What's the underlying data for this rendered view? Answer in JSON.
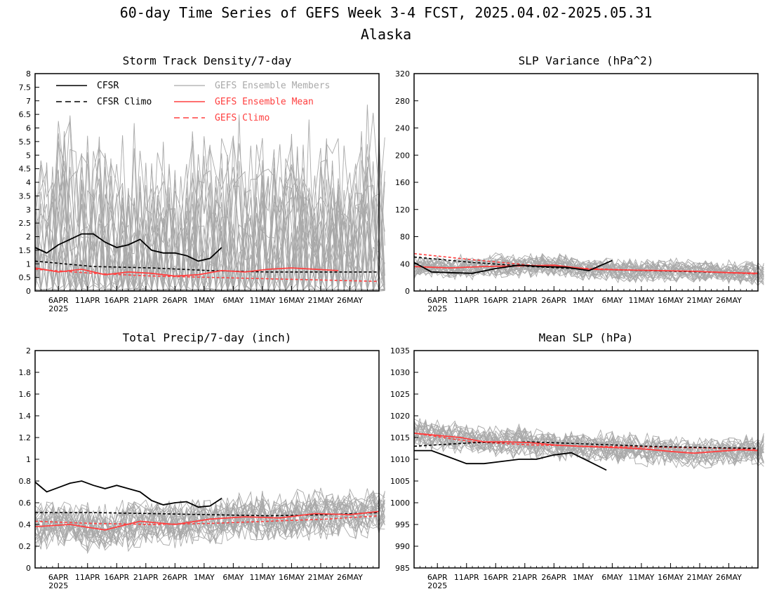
{
  "figure": {
    "title": "60-day Time Series of GEFS Week 3-4 FCST, 2025.04.02-2025.05.31",
    "subtitle": "Alaska"
  },
  "dates": {
    "tick_labels": [
      "6APR",
      "11APR",
      "16APR",
      "21APR",
      "26APR",
      "1MAY",
      "6MAY",
      "11MAY",
      "16MAY",
      "21MAY",
      "26MAY"
    ],
    "year_label": "2025"
  },
  "legend": {
    "cfsr": "CFSR",
    "cfsr_climo": "CFSR Climo",
    "members": "GEFS Ensemble Members",
    "mean": "GEFS Ensemble Mean",
    "gefs_climo": "GEFS Climo"
  },
  "colors": {
    "cfsr": "#000000",
    "members": "#a9a9a9",
    "mean": "#ff4040",
    "gefs_climo": "#ff4040"
  },
  "chart_data": [
    {
      "type": "line",
      "title": "Storm Track Density/7-day",
      "ylim": [
        0,
        8
      ],
      "y_ticks": [
        "0",
        "0.5",
        "1",
        "1.5",
        "2",
        "2.5",
        "3",
        "3.5",
        "4",
        "4.5",
        "5",
        "5.5",
        "6",
        "6.5",
        "7",
        "7.5",
        "8"
      ],
      "x_range": [
        "2025-04-02",
        "2025-05-31"
      ],
      "grid": false,
      "legend_position": "top-left",
      "series": [
        {
          "name": "CFSR",
          "style": "solid",
          "color": "#000000",
          "x": [
            "2025-04-02",
            "2025-04-04",
            "2025-04-06",
            "2025-04-08",
            "2025-04-10",
            "2025-04-12",
            "2025-04-14",
            "2025-04-16",
            "2025-04-18",
            "2025-04-20",
            "2025-04-22",
            "2025-04-24",
            "2025-04-26",
            "2025-04-28",
            "2025-04-30",
            "2025-05-02",
            "2025-05-04"
          ],
          "values": [
            1.6,
            1.4,
            1.7,
            1.9,
            2.1,
            2.1,
            1.8,
            1.6,
            1.7,
            1.9,
            1.5,
            1.4,
            1.4,
            1.3,
            1.1,
            1.2,
            1.6
          ]
        },
        {
          "name": "CFSR Climo",
          "style": "dashed",
          "color": "#000000",
          "x": [
            "2025-04-02",
            "2025-04-12",
            "2025-04-22",
            "2025-05-02",
            "2025-05-12",
            "2025-05-22",
            "2025-05-31"
          ],
          "values": [
            1.1,
            0.9,
            0.85,
            0.75,
            0.7,
            0.7,
            0.7
          ]
        },
        {
          "name": "GEFS Ensemble Mean",
          "style": "solid",
          "color": "#ff4040",
          "x": [
            "2025-04-02",
            "2025-04-06",
            "2025-04-10",
            "2025-04-14",
            "2025-04-18",
            "2025-04-22",
            "2025-04-26",
            "2025-04-30",
            "2025-05-04",
            "2025-05-08",
            "2025-05-12",
            "2025-05-16",
            "2025-05-20",
            "2025-05-24"
          ],
          "values": [
            0.85,
            0.7,
            0.8,
            0.6,
            0.7,
            0.65,
            0.55,
            0.6,
            0.75,
            0.7,
            0.8,
            0.85,
            0.8,
            0.75
          ]
        },
        {
          "name": "GEFS Climo",
          "style": "dashed",
          "color": "#ff4040",
          "x": [
            "2025-04-02",
            "2025-04-12",
            "2025-04-22",
            "2025-05-02",
            "2025-05-12",
            "2025-05-22",
            "2025-05-31"
          ],
          "values": [
            0.8,
            0.65,
            0.55,
            0.5,
            0.45,
            0.4,
            0.35
          ]
        }
      ]
    },
    {
      "type": "line",
      "title": "SLP Variance (hPa^2)",
      "ylim": [
        0,
        320
      ],
      "y_ticks": [
        "0",
        "40",
        "80",
        "120",
        "160",
        "200",
        "240",
        "280",
        "320"
      ],
      "x_range": [
        "2025-04-02",
        "2025-05-31"
      ],
      "grid": false,
      "series": [
        {
          "name": "CFSR",
          "style": "solid",
          "color": "#000000",
          "x": [
            "2025-04-02",
            "2025-04-05",
            "2025-04-08",
            "2025-04-12",
            "2025-04-16",
            "2025-04-20",
            "2025-04-24",
            "2025-04-28",
            "2025-05-02",
            "2025-05-06"
          ],
          "values": [
            42,
            28,
            27,
            26,
            33,
            38,
            36,
            35,
            30,
            45
          ]
        },
        {
          "name": "CFSR Climo",
          "style": "dashed",
          "color": "#000000",
          "x": [
            "2025-04-02",
            "2025-04-12",
            "2025-04-22",
            "2025-05-02",
            "2025-05-12",
            "2025-05-22",
            "2025-05-31"
          ],
          "values": [
            50,
            42,
            36,
            32,
            30,
            28,
            26
          ]
        },
        {
          "name": "GEFS Ensemble Mean",
          "style": "solid",
          "color": "#ff4040",
          "x": [
            "2025-04-02",
            "2025-04-08",
            "2025-04-14",
            "2025-04-20",
            "2025-04-26",
            "2025-05-02",
            "2025-05-08",
            "2025-05-14",
            "2025-05-20",
            "2025-05-26",
            "2025-05-31"
          ],
          "values": [
            36,
            34,
            36,
            37,
            38,
            32,
            31,
            30,
            29,
            27,
            26
          ]
        },
        {
          "name": "GEFS Climo",
          "style": "dashed",
          "color": "#ff4040",
          "x": [
            "2025-04-02",
            "2025-04-12",
            "2025-04-22",
            "2025-05-02",
            "2025-05-12",
            "2025-05-22",
            "2025-05-31"
          ],
          "values": [
            55,
            46,
            38,
            33,
            30,
            28,
            25
          ]
        }
      ]
    },
    {
      "type": "line",
      "title": "Total Precip/7-day (inch)",
      "ylim": [
        0,
        2
      ],
      "y_ticks": [
        "0",
        "0.2",
        "0.4",
        "0.6",
        "0.8",
        "1",
        "1.2",
        "1.4",
        "1.6",
        "1.8",
        "2"
      ],
      "x_range": [
        "2025-04-02",
        "2025-05-31"
      ],
      "grid": false,
      "series": [
        {
          "name": "CFSR",
          "style": "solid",
          "color": "#000000",
          "x": [
            "2025-04-02",
            "2025-04-04",
            "2025-04-06",
            "2025-04-08",
            "2025-04-10",
            "2025-04-12",
            "2025-04-14",
            "2025-04-16",
            "2025-04-18",
            "2025-04-20",
            "2025-04-22",
            "2025-04-24",
            "2025-04-26",
            "2025-04-28",
            "2025-04-30",
            "2025-05-02",
            "2025-05-04"
          ],
          "values": [
            0.79,
            0.7,
            0.74,
            0.78,
            0.8,
            0.76,
            0.73,
            0.76,
            0.73,
            0.7,
            0.62,
            0.58,
            0.6,
            0.61,
            0.56,
            0.57,
            0.64
          ]
        },
        {
          "name": "CFSR Climo",
          "style": "dashed",
          "color": "#000000",
          "x": [
            "2025-04-02",
            "2025-04-12",
            "2025-04-22",
            "2025-05-02",
            "2025-05-12",
            "2025-05-22",
            "2025-05-31"
          ],
          "values": [
            0.51,
            0.51,
            0.5,
            0.49,
            0.48,
            0.49,
            0.51
          ]
        },
        {
          "name": "GEFS Ensemble Mean",
          "style": "solid",
          "color": "#ff4040",
          "x": [
            "2025-04-02",
            "2025-04-08",
            "2025-04-14",
            "2025-04-20",
            "2025-04-26",
            "2025-05-02",
            "2025-05-08",
            "2025-05-14",
            "2025-05-20",
            "2025-05-26",
            "2025-05-31"
          ],
          "values": [
            0.38,
            0.4,
            0.35,
            0.43,
            0.4,
            0.45,
            0.47,
            0.46,
            0.5,
            0.49,
            0.52
          ]
        },
        {
          "name": "GEFS Climo",
          "style": "dashed",
          "color": "#ff4040",
          "x": [
            "2025-04-02",
            "2025-04-12",
            "2025-04-22",
            "2025-05-02",
            "2025-05-12",
            "2025-05-22",
            "2025-05-31"
          ],
          "values": [
            0.43,
            0.41,
            0.4,
            0.41,
            0.43,
            0.45,
            0.48
          ]
        }
      ]
    },
    {
      "type": "line",
      "title": "Mean SLP (hPa)",
      "ylim": [
        985,
        1035
      ],
      "y_ticks": [
        "985",
        "990",
        "995",
        "1000",
        "1005",
        "1010",
        "1015",
        "1020",
        "1025",
        "1030",
        "1035"
      ],
      "x_range": [
        "2025-04-02",
        "2025-05-31"
      ],
      "grid": false,
      "series": [
        {
          "name": "CFSR",
          "style": "solid",
          "color": "#000000",
          "x": [
            "2025-04-02",
            "2025-04-05",
            "2025-04-08",
            "2025-04-11",
            "2025-04-14",
            "2025-04-17",
            "2025-04-20",
            "2025-04-23",
            "2025-04-26",
            "2025-04-29",
            "2025-05-02",
            "2025-05-05"
          ],
          "values": [
            1012,
            1012,
            1010.5,
            1009,
            1009,
            1009.5,
            1010,
            1010,
            1011,
            1011.5,
            1009.5,
            1007.5
          ]
        },
        {
          "name": "CFSR Climo",
          "style": "dashed",
          "color": "#000000",
          "x": [
            "2025-04-02",
            "2025-04-12",
            "2025-04-22",
            "2025-05-02",
            "2025-05-12",
            "2025-05-22",
            "2025-05-31"
          ],
          "values": [
            1013,
            1013.8,
            1014,
            1013.5,
            1013,
            1012.7,
            1012.5
          ]
        },
        {
          "name": "GEFS Ensemble Mean",
          "style": "solid",
          "color": "#ff4040",
          "x": [
            "2025-04-02",
            "2025-04-06",
            "2025-04-10",
            "2025-04-14",
            "2025-04-18",
            "2025-04-22",
            "2025-04-26",
            "2025-04-30",
            "2025-05-04",
            "2025-05-08",
            "2025-05-12",
            "2025-05-16",
            "2025-05-20",
            "2025-05-24",
            "2025-05-28",
            "2025-05-31"
          ],
          "values": [
            1016,
            1015.5,
            1015,
            1014,
            1014,
            1013.8,
            1013.3,
            1013,
            1012.8,
            1012.6,
            1012.3,
            1011.8,
            1011.4,
            1011.8,
            1012.2,
            1012
          ]
        },
        {
          "name": "GEFS Climo",
          "style": "dashed",
          "color": "#ff4040",
          "x": [
            "2025-04-02",
            "2025-04-12",
            "2025-04-22",
            "2025-05-02",
            "2025-05-12",
            "2025-05-22",
            "2025-05-31"
          ],
          "values": [
            1016,
            1014,
            1013.3,
            1013,
            1012.8,
            1012.6,
            1012.3
          ]
        }
      ]
    }
  ]
}
